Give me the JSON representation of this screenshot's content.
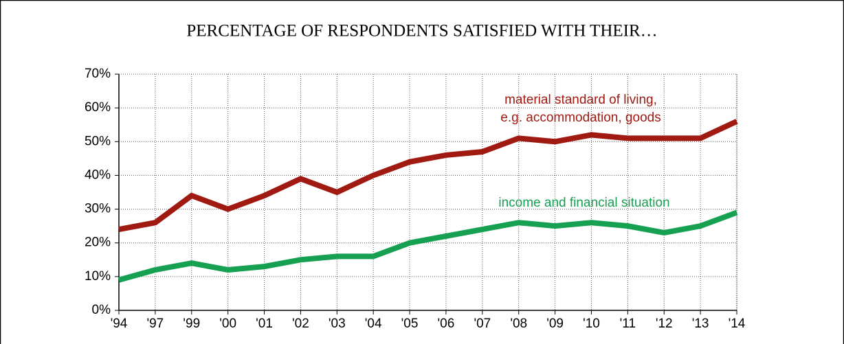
{
  "chart_data": {
    "type": "line",
    "title": "PERCENTAGE OF RESPONDENTS SATISFIED WITH THEIR…",
    "categories": [
      "'94",
      "'97",
      "'99",
      "'00",
      "'01",
      "'02",
      "'03",
      "'04",
      "'05",
      "'06",
      "'07",
      "'08",
      "'09",
      "'10",
      "'11",
      "'12",
      "'13",
      "'14"
    ],
    "series": [
      {
        "name": "material standard of living, e.g. accommodation, goods",
        "color": "#a01a12",
        "values": [
          24,
          26,
          34,
          30,
          34,
          39,
          35,
          40,
          44,
          46,
          47,
          51,
          50,
          52,
          51,
          51,
          51,
          56
        ]
      },
      {
        "name": "income and financial situation",
        "color": "#16a052",
        "values": [
          9,
          12,
          14,
          12,
          13,
          15,
          16,
          16,
          20,
          22,
          24,
          26,
          25,
          26,
          25,
          23,
          25,
          29
        ]
      }
    ],
    "annotations": [
      "material standard of living,",
      "e.g. accommodation, goods",
      "income and financial situation"
    ],
    "ylim": [
      0,
      70
    ],
    "yticks": [
      {
        "value": 0,
        "label": "0%"
      },
      {
        "value": 10,
        "label": "10%"
      },
      {
        "value": 20,
        "label": "20%"
      },
      {
        "value": 30,
        "label": "30%"
      },
      {
        "value": 40,
        "label": "40%"
      },
      {
        "value": 50,
        "label": "50%"
      },
      {
        "value": 60,
        "label": "60%"
      },
      {
        "value": 70,
        "label": "70%"
      }
    ],
    "grid": true
  }
}
